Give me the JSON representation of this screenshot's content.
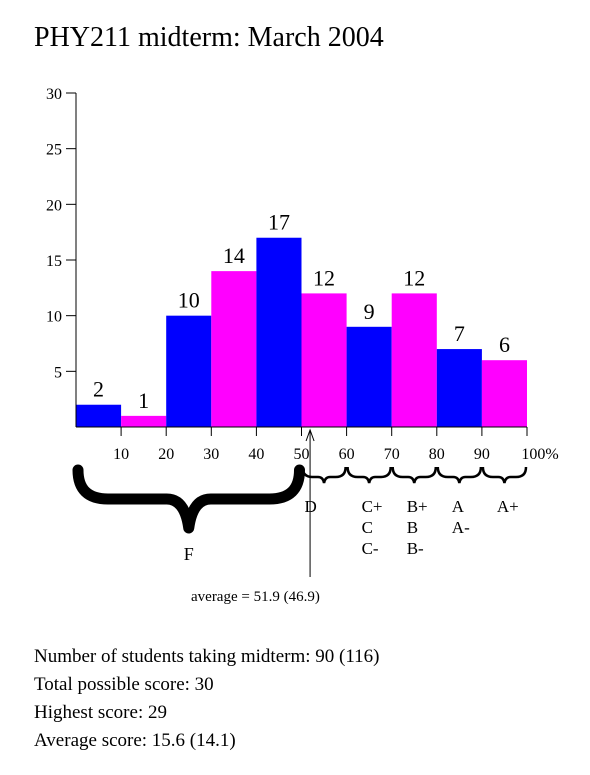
{
  "chart_data": {
    "type": "bar",
    "title": "PHY211 midterm: March 2004",
    "y_ticks": [
      "5",
      "10",
      "15",
      "20",
      "25",
      "30"
    ],
    "y_tick_values": [
      5,
      10,
      15,
      20,
      25,
      30
    ],
    "x_ticks": [
      "10",
      "20",
      "30",
      "40",
      "50",
      "60",
      "70",
      "80",
      "90",
      "100%"
    ],
    "x_tick_values": [
      10,
      20,
      30,
      40,
      50,
      60,
      70,
      80,
      90,
      100
    ],
    "xlim": [
      0,
      100
    ],
    "ylim": [
      0,
      30
    ],
    "bins": [
      [
        0,
        10
      ],
      [
        10,
        20
      ],
      [
        20,
        30
      ],
      [
        30,
        40
      ],
      [
        40,
        50
      ],
      [
        50,
        60
      ],
      [
        60,
        70
      ],
      [
        70,
        80
      ],
      [
        80,
        90
      ],
      [
        90,
        100
      ]
    ],
    "values": [
      2,
      1,
      10,
      14,
      17,
      12,
      9,
      12,
      7,
      6
    ],
    "value_labels": [
      "2",
      "1",
      "10",
      "14",
      "17",
      "12",
      "9",
      "12",
      "7",
      "6"
    ],
    "bar_colors": [
      "#0000ff",
      "#ff00ff",
      "#0000ff",
      "#ff00ff",
      "#0000ff",
      "#ff00ff",
      "#0000ff",
      "#ff00ff",
      "#0000ff",
      "#ff00ff"
    ],
    "grid": false,
    "average_marker": 51.9,
    "average_label": "average = 51.9 (46.9)",
    "grade_brackets": [
      {
        "from": 0,
        "to": 50,
        "label": "F"
      }
    ],
    "grade_columns": [
      {
        "x": 50,
        "lines": [
          "D"
        ]
      },
      {
        "x": 60,
        "lines": [
          "C+",
          "C",
          "C-"
        ]
      },
      {
        "x": 70,
        "lines": [
          "B+",
          "B",
          "B-"
        ]
      },
      {
        "x": 80,
        "lines": [
          "A",
          "A-"
        ]
      },
      {
        "x": 90,
        "lines": [
          "A+"
        ]
      }
    ]
  },
  "stats": {
    "students": "Number of students taking midterm: 90 (116)",
    "total": "Total possible score: 30",
    "highest": "Highest score: 29",
    "average": "Average score: 15.6 (14.1)"
  }
}
